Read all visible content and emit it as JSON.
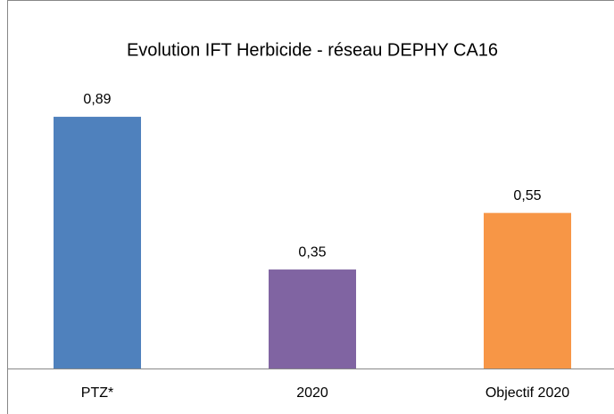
{
  "chart_data": {
    "type": "bar",
    "title": "Evolution IFT Herbicide - réseau DEPHY CA16",
    "categories": [
      "PTZ*",
      "2020",
      "Objectif 2020"
    ],
    "values": [
      0.89,
      0.35,
      0.55
    ],
    "value_labels": [
      "0,89",
      "0,35",
      "0,55"
    ],
    "colors": [
      "#4f81bd",
      "#8064a2",
      "#f79646"
    ]
  }
}
